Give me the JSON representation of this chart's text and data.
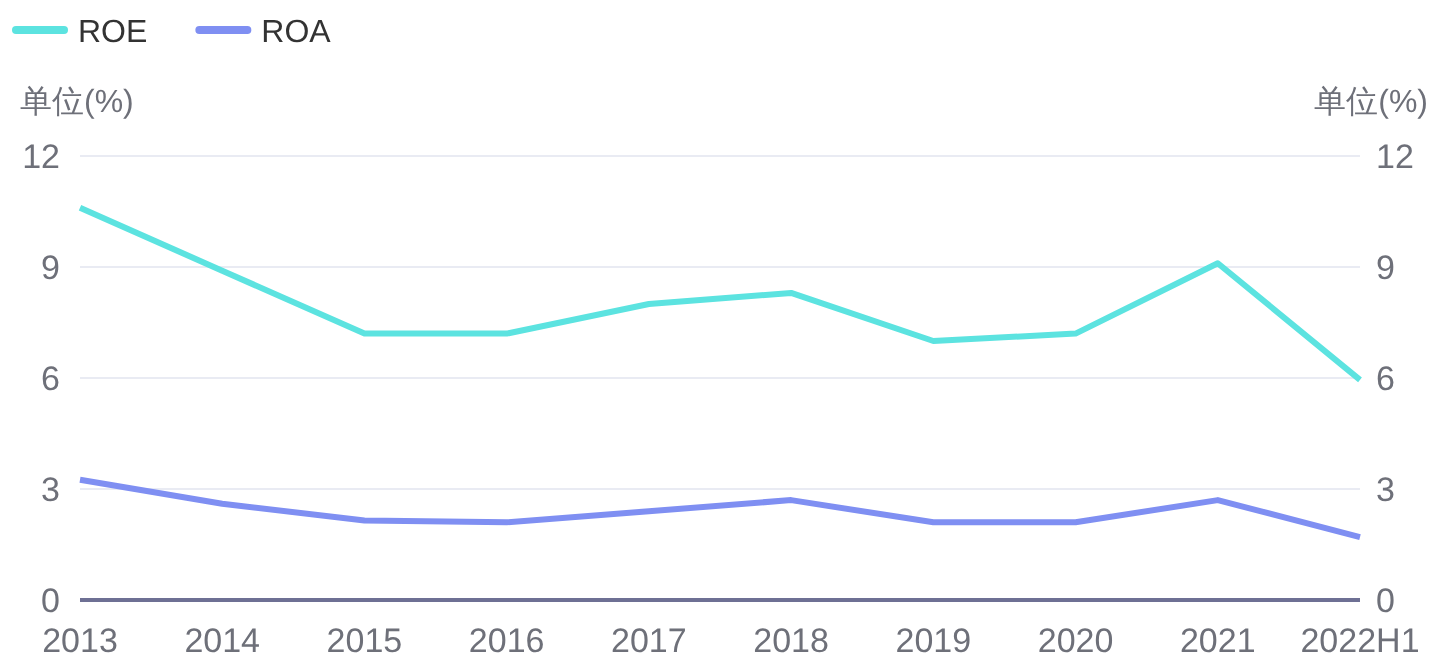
{
  "chart_data": {
    "type": "line",
    "ylabel": "单位(%)",
    "y2label": "单位(%)",
    "categories": [
      "2013",
      "2014",
      "2015",
      "2016",
      "2017",
      "2018",
      "2019",
      "2020",
      "2021",
      "2022H1"
    ],
    "series": [
      {
        "name": "ROE",
        "color": "#5ce3e0",
        "values": [
          10.6,
          8.9,
          7.2,
          7.2,
          8.0,
          8.3,
          7.0,
          7.2,
          9.1,
          5.95
        ]
      },
      {
        "name": "ROA",
        "color": "#7f8ff2",
        "values": [
          3.25,
          2.6,
          2.15,
          2.1,
          2.4,
          2.7,
          2.1,
          2.1,
          2.7,
          1.7
        ]
      }
    ],
    "ylim": [
      0,
      12
    ],
    "yticks": [
      0,
      3,
      6,
      9,
      12
    ],
    "y2lim": [
      0,
      12
    ],
    "y2ticks": [
      0,
      3,
      6,
      9,
      12
    ],
    "grid": "y",
    "legend": "top left",
    "marker": "none",
    "line_style": "solid"
  }
}
